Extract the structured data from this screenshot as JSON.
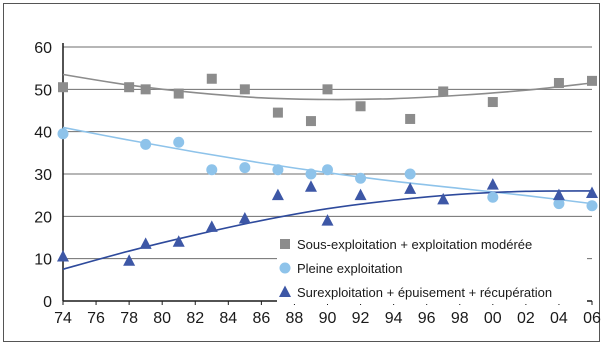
{
  "chart_data": {
    "type": "scatter",
    "title": "",
    "xlabel": "",
    "ylabel": "",
    "x_tick_labels": [
      "74",
      "76",
      "78",
      "80",
      "82",
      "84",
      "86",
      "88",
      "90",
      "92",
      "94",
      "96",
      "98",
      "00",
      "02",
      "04",
      "06"
    ],
    "y_tick_labels": [
      "0",
      "10",
      "20",
      "30",
      "40",
      "50",
      "60"
    ],
    "xlim": [
      1974,
      2006
    ],
    "ylim": [
      0,
      60
    ],
    "grid": "horizontal",
    "legend_position": "bottom-right",
    "series": [
      {
        "name": "Sous-exploitation + exploitation modérée",
        "marker": "square",
        "color": "#8c8c8c",
        "trend_color": "#8c8c8c",
        "x": [
          1974,
          1978,
          1979,
          1981,
          1983,
          1985,
          1987,
          1989,
          1990,
          1992,
          1995,
          1997,
          2000,
          2004,
          2006
        ],
        "y": [
          50.5,
          50.5,
          50,
          49,
          52.5,
          50,
          44.5,
          42.5,
          50,
          46,
          43,
          49.5,
          47,
          51.5,
          52
        ],
        "trend": [
          [
            1974,
            53.5
          ],
          [
            1978,
            51
          ],
          [
            1982,
            49.2
          ],
          [
            1986,
            48
          ],
          [
            1990,
            47.6
          ],
          [
            1994,
            47.8
          ],
          [
            1998,
            48.6
          ],
          [
            2002,
            49.8
          ],
          [
            2006,
            51.5
          ]
        ]
      },
      {
        "name": "Pleine exploitation",
        "marker": "circle",
        "color": "#8ec3ea",
        "trend_color": "#8ec3ea",
        "x": [
          1974,
          1979,
          1981,
          1983,
          1985,
          1987,
          1989,
          1990,
          1992,
          1995,
          2000,
          2004,
          2006
        ],
        "y": [
          39.5,
          37,
          37.5,
          31,
          31.5,
          31,
          30,
          31,
          29,
          30,
          24.5,
          23,
          22.5
        ],
        "trend": [
          [
            1974,
            41
          ],
          [
            1978,
            38
          ],
          [
            1982,
            35.2
          ],
          [
            1986,
            32.6
          ],
          [
            1990,
            30.3
          ],
          [
            1994,
            28.3
          ],
          [
            1998,
            26.6
          ],
          [
            2002,
            24.9
          ],
          [
            2006,
            23
          ]
        ]
      },
      {
        "name": "Surexploitation + épuisement + récupération",
        "marker": "triangle",
        "color": "#3d57a6",
        "trend_color": "#2e4a9c",
        "x": [
          1974,
          1978,
          1979,
          1981,
          1983,
          1985,
          1987,
          1989,
          1990,
          1992,
          1995,
          1997,
          2000,
          2004,
          2006
        ],
        "y": [
          10.5,
          9.5,
          13.5,
          14,
          17.5,
          19.5,
          25,
          27,
          19,
          25,
          26.5,
          24,
          27.5,
          25,
          25.5
        ],
        "trend": [
          [
            1974,
            7.5
          ],
          [
            1978,
            11.8
          ],
          [
            1982,
            15.6
          ],
          [
            1986,
            19
          ],
          [
            1990,
            21.8
          ],
          [
            1994,
            23.8
          ],
          [
            1998,
            25.2
          ],
          [
            2002,
            25.9
          ],
          [
            2006,
            26
          ]
        ]
      }
    ]
  }
}
